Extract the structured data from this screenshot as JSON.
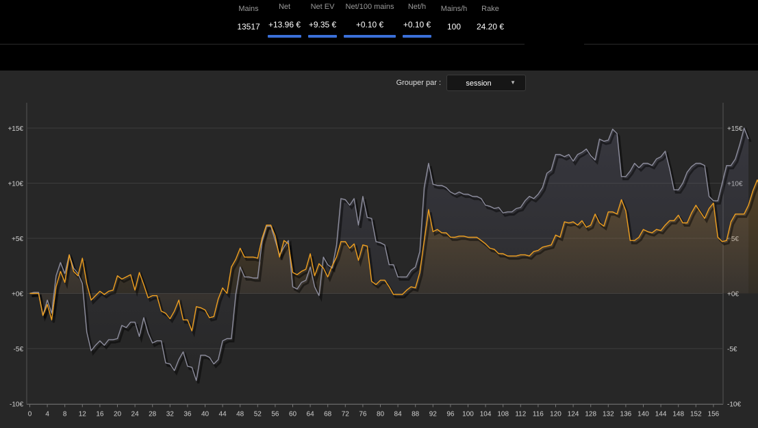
{
  "stats": [
    {
      "label": "Mains",
      "value": "13517",
      "bar": false
    },
    {
      "label": "Net",
      "value": "+13.96 €",
      "bar": true
    },
    {
      "label": "Net EV",
      "value": "+9.35 €",
      "bar": true
    },
    {
      "label": "Net/100 mains",
      "value": "+0.10 €",
      "bar": true
    },
    {
      "label": "Net/h",
      "value": "+0.10 €",
      "bar": true
    },
    {
      "label": "Mains/h",
      "value": "100",
      "bar": false
    },
    {
      "label": "Rake",
      "value": "24.20 €",
      "bar": false
    }
  ],
  "group_by": {
    "label": "Grouper par :",
    "value": "session",
    "icon": "caret-down-icon"
  },
  "colors": {
    "net": "#f0a020",
    "ev": "#8e8e9e",
    "background": "#272727",
    "grid": "#3d3d3d"
  },
  "chart_data": {
    "type": "line",
    "title": "",
    "xlabel": "",
    "ylabel": "",
    "xlim": [
      0,
      158
    ],
    "ylim": [
      -10,
      15
    ],
    "x_ticks": [
      0,
      4,
      8,
      12,
      16,
      20,
      24,
      28,
      32,
      36,
      40,
      44,
      48,
      52,
      56,
      60,
      64,
      68,
      72,
      76,
      80,
      84,
      88,
      92,
      96,
      100,
      104,
      108,
      112,
      116,
      120,
      124,
      128,
      132,
      136,
      140,
      144,
      148,
      152,
      156
    ],
    "y_ticks": [
      -10,
      -5,
      0,
      5,
      10,
      15
    ],
    "y_tick_labels": [
      "-10€",
      "-5€",
      "+0€",
      "+5€",
      "+10€",
      "+15€"
    ],
    "y_axis_sides": [
      "left",
      "right"
    ],
    "grid": "horizontal",
    "legend": "none",
    "series": [
      {
        "values": [
          0,
          0,
          0,
          -2,
          -1,
          -2.4,
          0.6,
          2,
          1,
          3.5,
          2,
          1.6,
          3.2,
          0.9,
          -0.6,
          -0.2,
          0.2,
          -0.1,
          0.2,
          0.3,
          1.6,
          1.3,
          1.5,
          1.7,
          0.3,
          1.9,
          0.8,
          -0.4,
          -0.2,
          -0.2,
          -1.6,
          -1.8,
          -2.3,
          -1.6,
          -0.6,
          -2.4,
          -2.4,
          -3.4,
          -1.2,
          -1.3,
          -1.5,
          -2.2,
          -2.1,
          -0.5,
          0.5,
          0,
          2.4,
          3.1,
          4.1,
          3.3,
          3.3,
          3.3,
          3.2,
          5,
          6.2,
          6.2,
          5.2,
          3.3,
          4.8,
          4.5,
          1.9,
          1.7,
          2,
          2.2,
          3.6,
          1.6,
          2.7,
          2.3,
          1.5,
          2.5,
          3.3,
          4.7,
          4.7,
          4.1,
          4.5,
          3,
          4.4,
          4.3,
          1.1,
          0.8,
          1.2,
          1.2,
          0.6,
          -0.1,
          -0.1,
          -0.1,
          0.3,
          0.6,
          0.5,
          1.9,
          4.8,
          7.6,
          5.6,
          5.8,
          5.5,
          5.5,
          5.1,
          5.1,
          5.2,
          5.2,
          5.1,
          5.1,
          5.1,
          4.8,
          4.5,
          4.1,
          4,
          3.6,
          3.6,
          3.4,
          3.4,
          3.4,
          3.5,
          3.5,
          3.4,
          3.8,
          3.9,
          4.2,
          4.3,
          4.4,
          5.3,
          5.1,
          6.5,
          6.4,
          6.5,
          6.2,
          6.6,
          6,
          6.2,
          7.2,
          6.4,
          6.1,
          7.4,
          7.4,
          7.2,
          8.5,
          7.5,
          4.8,
          4.8,
          5.1,
          5.8,
          5.6,
          5.5,
          5.8,
          5.7,
          6.2,
          6.6,
          6.6,
          7.1,
          6.4,
          6.4,
          7.3,
          8,
          7.4,
          6.8,
          7.7,
          8.2,
          5.1,
          4.7,
          4.8,
          6.5,
          7.2,
          7.2,
          7.2,
          8,
          9.3,
          10.3,
          9.4
        ]
      },
      {
        "values": [
          0,
          0.1,
          0.1,
          -2,
          -0.6,
          -1.8,
          1.6,
          2.8,
          1.8,
          3.5,
          2.3,
          1.8,
          0.9,
          -3.5,
          -5.2,
          -4.7,
          -4.3,
          -4.7,
          -4.2,
          -4.2,
          -4.1,
          -2.9,
          -3.1,
          -2.6,
          -2.6,
          -3.9,
          -2.2,
          -3.6,
          -4.5,
          -4.3,
          -4.3,
          -6.3,
          -6.4,
          -7,
          -6,
          -5.3,
          -6.6,
          -6.7,
          -7.9,
          -5.6,
          -5.6,
          -5.8,
          -6.4,
          -6,
          -4.3,
          -4.1,
          -4.1,
          -0.1,
          2.4,
          1.5,
          1.5,
          1.4,
          1.4,
          4.7,
          6.1,
          6.1,
          4.8,
          3.5,
          4.2,
          4.8,
          0.6,
          0.4,
          1,
          1.2,
          2.4,
          0.6,
          -0.2,
          3.3,
          2.6,
          2.3,
          4.4,
          8.6,
          8.5,
          8,
          8.6,
          6.2,
          8.8,
          6.9,
          6.8,
          4.7,
          4.6,
          4.4,
          2.6,
          2.6,
          1.5,
          1.5,
          1.5,
          2.1,
          2.4,
          3.8,
          9.6,
          11.8,
          9.9,
          9.8,
          9.8,
          9.6,
          9.2,
          9,
          9.2,
          9,
          9,
          8.8,
          8.8,
          8.6,
          8,
          7.9,
          7.7,
          7.8,
          7.3,
          7.4,
          7.4,
          7.7,
          7.8,
          8.4,
          8.8,
          8.6,
          9,
          9.6,
          10.9,
          11.2,
          12.6,
          12.6,
          12.4,
          12.6,
          12,
          12.6,
          12.8,
          13.1,
          12.5,
          12.1,
          14,
          13.8,
          13.9,
          14.9,
          14.5,
          10.6,
          10.6,
          11.1,
          11.8,
          11.4,
          11.8,
          11.8,
          11.6,
          12.2,
          12.4,
          12.9,
          11.3,
          9.4,
          9.4,
          10,
          11,
          11.5,
          11.8,
          11.8,
          11.6,
          8.8,
          8.4,
          8.4,
          10,
          11.6,
          11.6,
          12.2,
          13.5,
          15,
          14
        ]
      }
    ]
  }
}
